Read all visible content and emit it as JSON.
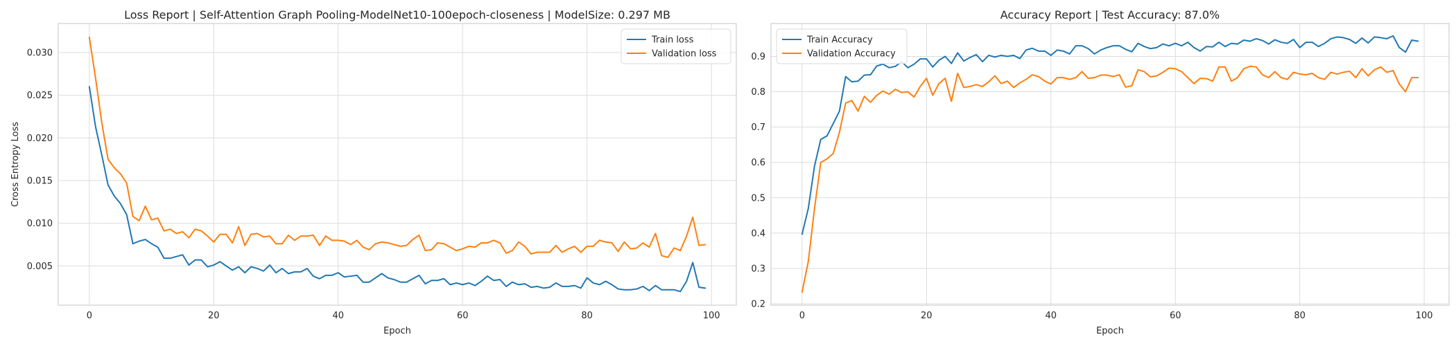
{
  "chart_data": [
    {
      "type": "line",
      "title": "Loss Report | Self-Attention Graph Pooling-ModelNet10-100epoch-closeness | ModelSize: 0.297 MB",
      "xlabel": "Epoch",
      "ylabel": "Cross Entropy Loss",
      "xlim": [
        -5,
        104
      ],
      "ylim": [
        0.0004,
        0.0334
      ],
      "xticks": [
        0,
        20,
        40,
        60,
        80,
        100
      ],
      "yticks": [
        0.005,
        0.01,
        0.015,
        0.02,
        0.025,
        0.03
      ],
      "ytick_labels": [
        "0.005",
        "0.010",
        "0.015",
        "0.020",
        "0.025",
        "0.030"
      ],
      "grid": true,
      "legend_position": "top-right",
      "series": [
        {
          "name": "Train loss",
          "color": "#1f77b4",
          "values": [
            0.026,
            0.0213,
            0.018,
            0.0145,
            0.0132,
            0.0123,
            0.011,
            0.0076,
            0.0079,
            0.0081,
            0.0076,
            0.0072,
            0.0059,
            0.0059,
            0.0061,
            0.0063,
            0.0051,
            0.0057,
            0.0057,
            0.0049,
            0.0051,
            0.0055,
            0.005,
            0.0045,
            0.0049,
            0.0042,
            0.0049,
            0.0047,
            0.0044,
            0.0051,
            0.0042,
            0.0047,
            0.0041,
            0.0043,
            0.0043,
            0.0047,
            0.0038,
            0.0035,
            0.0039,
            0.0039,
            0.0042,
            0.0037,
            0.0038,
            0.0039,
            0.0031,
            0.0031,
            0.0036,
            0.0041,
            0.0036,
            0.0034,
            0.0031,
            0.0031,
            0.0035,
            0.0039,
            0.0029,
            0.0033,
            0.0033,
            0.0035,
            0.0028,
            0.003,
            0.0028,
            0.003,
            0.0027,
            0.0032,
            0.0038,
            0.0033,
            0.0034,
            0.0026,
            0.0031,
            0.0028,
            0.0029,
            0.0025,
            0.0026,
            0.0024,
            0.0025,
            0.003,
            0.0026,
            0.0026,
            0.0027,
            0.0024,
            0.0036,
            0.003,
            0.0028,
            0.0032,
            0.0028,
            0.0023,
            0.0022,
            0.0022,
            0.0023,
            0.0026,
            0.0021,
            0.0027,
            0.0022,
            0.0022,
            0.0022,
            0.002,
            0.0032,
            0.0054,
            0.0025,
            0.0024
          ]
        },
        {
          "name": "Validation loss",
          "color": "#ff7f0e",
          "values": [
            0.0318,
            0.027,
            0.0218,
            0.0175,
            0.0165,
            0.0158,
            0.0147,
            0.0108,
            0.0103,
            0.012,
            0.0104,
            0.0106,
            0.0091,
            0.0093,
            0.0088,
            0.009,
            0.0083,
            0.0093,
            0.0091,
            0.0085,
            0.0078,
            0.0087,
            0.0087,
            0.0077,
            0.0096,
            0.0074,
            0.0087,
            0.0088,
            0.0084,
            0.0085,
            0.0076,
            0.0076,
            0.0086,
            0.008,
            0.0085,
            0.0085,
            0.0086,
            0.0074,
            0.0085,
            0.008,
            0.008,
            0.0079,
            0.0075,
            0.008,
            0.0072,
            0.0069,
            0.0076,
            0.0078,
            0.0077,
            0.0075,
            0.0073,
            0.0074,
            0.0081,
            0.0086,
            0.0068,
            0.0069,
            0.0077,
            0.0076,
            0.0072,
            0.0068,
            0.007,
            0.0073,
            0.0072,
            0.0077,
            0.0077,
            0.008,
            0.0077,
            0.0065,
            0.0068,
            0.0078,
            0.0073,
            0.0064,
            0.0066,
            0.0066,
            0.0066,
            0.0074,
            0.0066,
            0.007,
            0.0073,
            0.0066,
            0.0073,
            0.0073,
            0.008,
            0.0078,
            0.0077,
            0.0067,
            0.0078,
            0.007,
            0.0071,
            0.0077,
            0.0072,
            0.0088,
            0.0062,
            0.006,
            0.0071,
            0.0068,
            0.0085,
            0.0107,
            0.0074,
            0.0075
          ]
        }
      ]
    },
    {
      "type": "line",
      "title": "Accuracy Report | Test Accuracy: 87.0%",
      "xlabel": "Epoch",
      "ylabel": "",
      "xlim": [
        -5,
        104
      ],
      "ylim": [
        0.196,
        0.993
      ],
      "xticks": [
        0,
        20,
        40,
        60,
        80,
        100
      ],
      "yticks": [
        0.2,
        0.3,
        0.4,
        0.5,
        0.6,
        0.7,
        0.8,
        0.9
      ],
      "ytick_labels": [
        "0.2",
        "0.3",
        "0.4",
        "0.5",
        "0.6",
        "0.7",
        "0.8",
        "0.9"
      ],
      "grid": true,
      "legend_position": "top-left",
      "series": [
        {
          "name": "Train Accuracy",
          "color": "#1f77b4",
          "values": [
            0.397,
            0.47,
            0.59,
            0.665,
            0.675,
            0.71,
            0.745,
            0.843,
            0.828,
            0.83,
            0.847,
            0.848,
            0.873,
            0.878,
            0.868,
            0.872,
            0.885,
            0.868,
            0.878,
            0.893,
            0.893,
            0.87,
            0.889,
            0.9,
            0.88,
            0.91,
            0.887,
            0.897,
            0.905,
            0.885,
            0.903,
            0.898,
            0.903,
            0.9,
            0.903,
            0.894,
            0.918,
            0.923,
            0.915,
            0.915,
            0.903,
            0.918,
            0.915,
            0.907,
            0.93,
            0.93,
            0.922,
            0.907,
            0.918,
            0.925,
            0.93,
            0.93,
            0.92,
            0.913,
            0.937,
            0.928,
            0.922,
            0.925,
            0.935,
            0.93,
            0.937,
            0.93,
            0.94,
            0.925,
            0.915,
            0.928,
            0.927,
            0.94,
            0.928,
            0.937,
            0.935,
            0.946,
            0.943,
            0.95,
            0.945,
            0.935,
            0.947,
            0.94,
            0.937,
            0.948,
            0.925,
            0.94,
            0.94,
            0.928,
            0.937,
            0.95,
            0.955,
            0.953,
            0.948,
            0.937,
            0.952,
            0.938,
            0.955,
            0.953,
            0.95,
            0.958,
            0.925,
            0.912,
            0.946,
            0.943
          ]
        },
        {
          "name": "Validation Accuracy",
          "color": "#ff7f0e",
          "values": [
            0.233,
            0.32,
            0.47,
            0.6,
            0.61,
            0.625,
            0.685,
            0.768,
            0.775,
            0.745,
            0.787,
            0.77,
            0.79,
            0.802,
            0.793,
            0.807,
            0.798,
            0.8,
            0.785,
            0.815,
            0.838,
            0.79,
            0.823,
            0.838,
            0.773,
            0.852,
            0.812,
            0.815,
            0.82,
            0.815,
            0.828,
            0.845,
            0.823,
            0.83,
            0.812,
            0.825,
            0.835,
            0.848,
            0.843,
            0.83,
            0.822,
            0.84,
            0.84,
            0.835,
            0.84,
            0.857,
            0.838,
            0.84,
            0.847,
            0.847,
            0.843,
            0.848,
            0.813,
            0.817,
            0.862,
            0.857,
            0.842,
            0.845,
            0.855,
            0.867,
            0.865,
            0.857,
            0.84,
            0.823,
            0.838,
            0.837,
            0.83,
            0.87,
            0.87,
            0.83,
            0.84,
            0.865,
            0.872,
            0.87,
            0.848,
            0.84,
            0.857,
            0.84,
            0.835,
            0.855,
            0.85,
            0.848,
            0.852,
            0.84,
            0.835,
            0.855,
            0.85,
            0.855,
            0.858,
            0.84,
            0.865,
            0.845,
            0.862,
            0.87,
            0.855,
            0.86,
            0.822,
            0.8,
            0.84,
            0.84
          ]
        }
      ]
    }
  ]
}
